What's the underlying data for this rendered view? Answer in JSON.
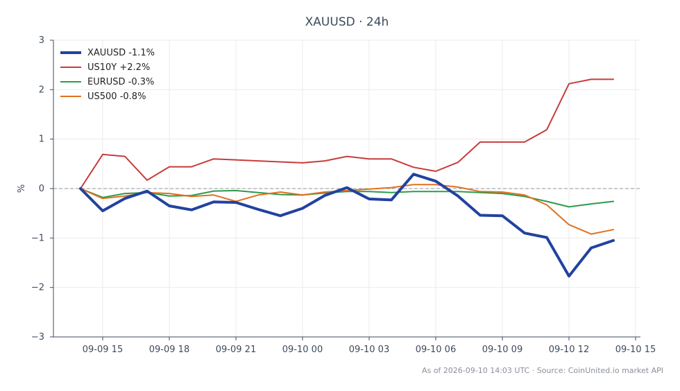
{
  "chart_data": {
    "type": "line",
    "title": "XAUUSD · 24h",
    "xlabel": "",
    "ylabel": "%",
    "ylim": [
      -3,
      3
    ],
    "yticks": [
      3,
      2,
      1,
      0,
      -1,
      -2,
      -3
    ],
    "ytick_labels": [
      "3",
      "2",
      "1",
      "0",
      "−1",
      "−2",
      "−3"
    ],
    "xticks": [
      {
        "label": "09-09 15",
        "t": 1
      },
      {
        "label": "09-09 18",
        "t": 4
      },
      {
        "label": "09-09 21",
        "t": 7
      },
      {
        "label": "09-10 00",
        "t": 10
      },
      {
        "label": "09-10 03",
        "t": 13
      },
      {
        "label": "09-10 06",
        "t": 16
      },
      {
        "label": "09-10 09",
        "t": 19
      },
      {
        "label": "09-10 12",
        "t": 22
      },
      {
        "label": "09-10 15",
        "t": 25
      }
    ],
    "x_hours_from": "09-09 14:00",
    "x": [
      0,
      1,
      2,
      3,
      4,
      5,
      6,
      7,
      8,
      9,
      10,
      11,
      12,
      13,
      14,
      15,
      16,
      17,
      18,
      19,
      20,
      21,
      22,
      23,
      24
    ],
    "grid": true,
    "zero_line": true,
    "legend_position": "top-left",
    "series": [
      {
        "name": "XAUUSD -1.1%",
        "color": "#2142a0",
        "width": 4,
        "values": [
          0,
          -0.45,
          -0.2,
          -0.05,
          -0.35,
          -0.43,
          -0.27,
          -0.28,
          -0.42,
          -0.55,
          -0.4,
          -0.14,
          0.02,
          -0.21,
          -0.23,
          0.29,
          0.15,
          -0.15,
          -0.54,
          -0.55,
          -0.9,
          -0.99,
          -1.77,
          -1.2,
          -1.05
        ]
      },
      {
        "name": "US10Y +2.2%",
        "color": "#c83b3b",
        "width": 2,
        "values": [
          0,
          0.69,
          0.65,
          0.17,
          0.44,
          0.44,
          0.6,
          0.58,
          0.56,
          0.54,
          0.52,
          0.56,
          0.65,
          0.6,
          0.6,
          0.43,
          0.35,
          0.53,
          0.94,
          0.94,
          0.94,
          1.19,
          2.12,
          2.21,
          2.21
        ]
      },
      {
        "name": "EURUSD -0.3%",
        "color": "#2e9a4a",
        "width": 2,
        "values": [
          0,
          -0.18,
          -0.1,
          -0.08,
          -0.15,
          -0.14,
          -0.05,
          -0.04,
          -0.08,
          -0.12,
          -0.13,
          -0.09,
          -0.06,
          -0.06,
          -0.08,
          -0.06,
          -0.06,
          -0.06,
          -0.08,
          -0.1,
          -0.16,
          -0.26,
          -0.37,
          -0.31,
          -0.26
        ]
      },
      {
        "name": "US500 -0.8%",
        "color": "#e07020",
        "width": 2,
        "values": [
          0,
          -0.2,
          -0.15,
          -0.08,
          -0.1,
          -0.16,
          -0.13,
          -0.26,
          -0.13,
          -0.07,
          -0.13,
          -0.07,
          -0.04,
          -0.01,
          0.02,
          0.08,
          0.08,
          0.03,
          -0.06,
          -0.07,
          -0.13,
          -0.33,
          -0.73,
          -0.92,
          -0.83
        ]
      }
    ],
    "footer": "As of 2026-09-10 14:03 UTC · Source: CoinUnited.io market API"
  }
}
